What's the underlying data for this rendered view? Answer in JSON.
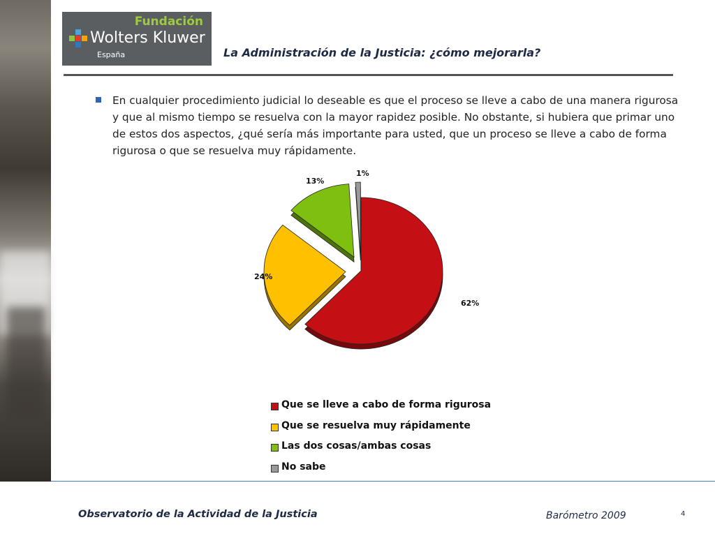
{
  "logo": {
    "fundacion": "Fundación",
    "brand": "Wolters Kluwer",
    "region": "España"
  },
  "header": {
    "title": "La Administración de la Justicia: ¿cómo mejorarla?"
  },
  "question": "En cualquier procedimiento judicial lo deseable es que el proceso se lleve a cabo de una manera rigurosa y que al mismo tiempo se resuelva con la mayor rapidez posible. No obstante, si hubiera que primar uno de estos dos aspectos, ¿qué sería más importante para usted, que un proceso se lleve a cabo de forma rigurosa o que se resuelva muy rápidamente.",
  "chart_data": {
    "type": "pie",
    "title": "",
    "categories": [
      "Que se lleve a cabo de forma rigurosa",
      "Que se resuelva muy rápidamente",
      "Las dos cosas/ambas cosas",
      "No sabe"
    ],
    "values": [
      62,
      24,
      13,
      1
    ],
    "labels": [
      "62%",
      "24%",
      "13%",
      "1%"
    ],
    "colors": [
      "#c40f14",
      "#ffc000",
      "#7fbf10",
      "#9a9a9a"
    ],
    "legend_position": "bottom",
    "exploded": true,
    "style_3d": true
  },
  "footer": {
    "left": "Observatorio de la Actividad de la Justicia",
    "right": "Barómetro 2009",
    "page": "4"
  }
}
